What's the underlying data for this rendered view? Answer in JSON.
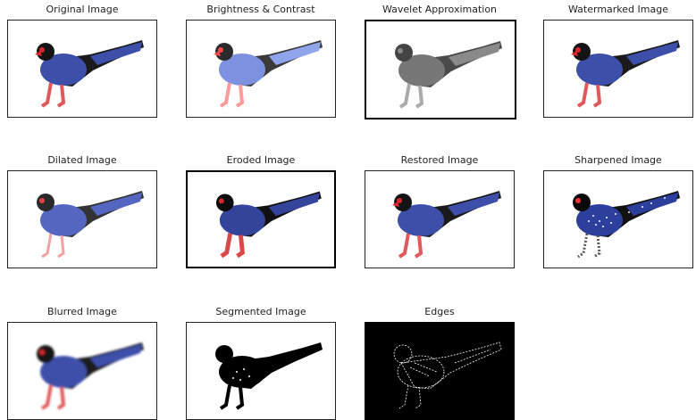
{
  "panels": [
    {
      "title": "Original Image",
      "style": "original"
    },
    {
      "title": "Brightness & Contrast",
      "style": "bright"
    },
    {
      "title": "Wavelet Approximation",
      "style": "gray"
    },
    {
      "title": "Watermarked Image",
      "style": "original"
    },
    {
      "title": "Dilated Image",
      "style": "dilated"
    },
    {
      "title": "Eroded Image",
      "style": "original"
    },
    {
      "title": "Restored Image",
      "style": "original"
    },
    {
      "title": "Sharpened Image",
      "style": "sharp"
    },
    {
      "title": "Blurred Image",
      "style": "blurred"
    },
    {
      "title": "Segmented Image",
      "style": "segmented"
    },
    {
      "title": "Edges",
      "style": "edges"
    }
  ],
  "colors": {
    "body_blue": "#3d4fa8",
    "head_black": "#141414",
    "beak_red": "#d8262a",
    "legs_red": "#e0585a",
    "tail_black": "#1a1a1a"
  }
}
